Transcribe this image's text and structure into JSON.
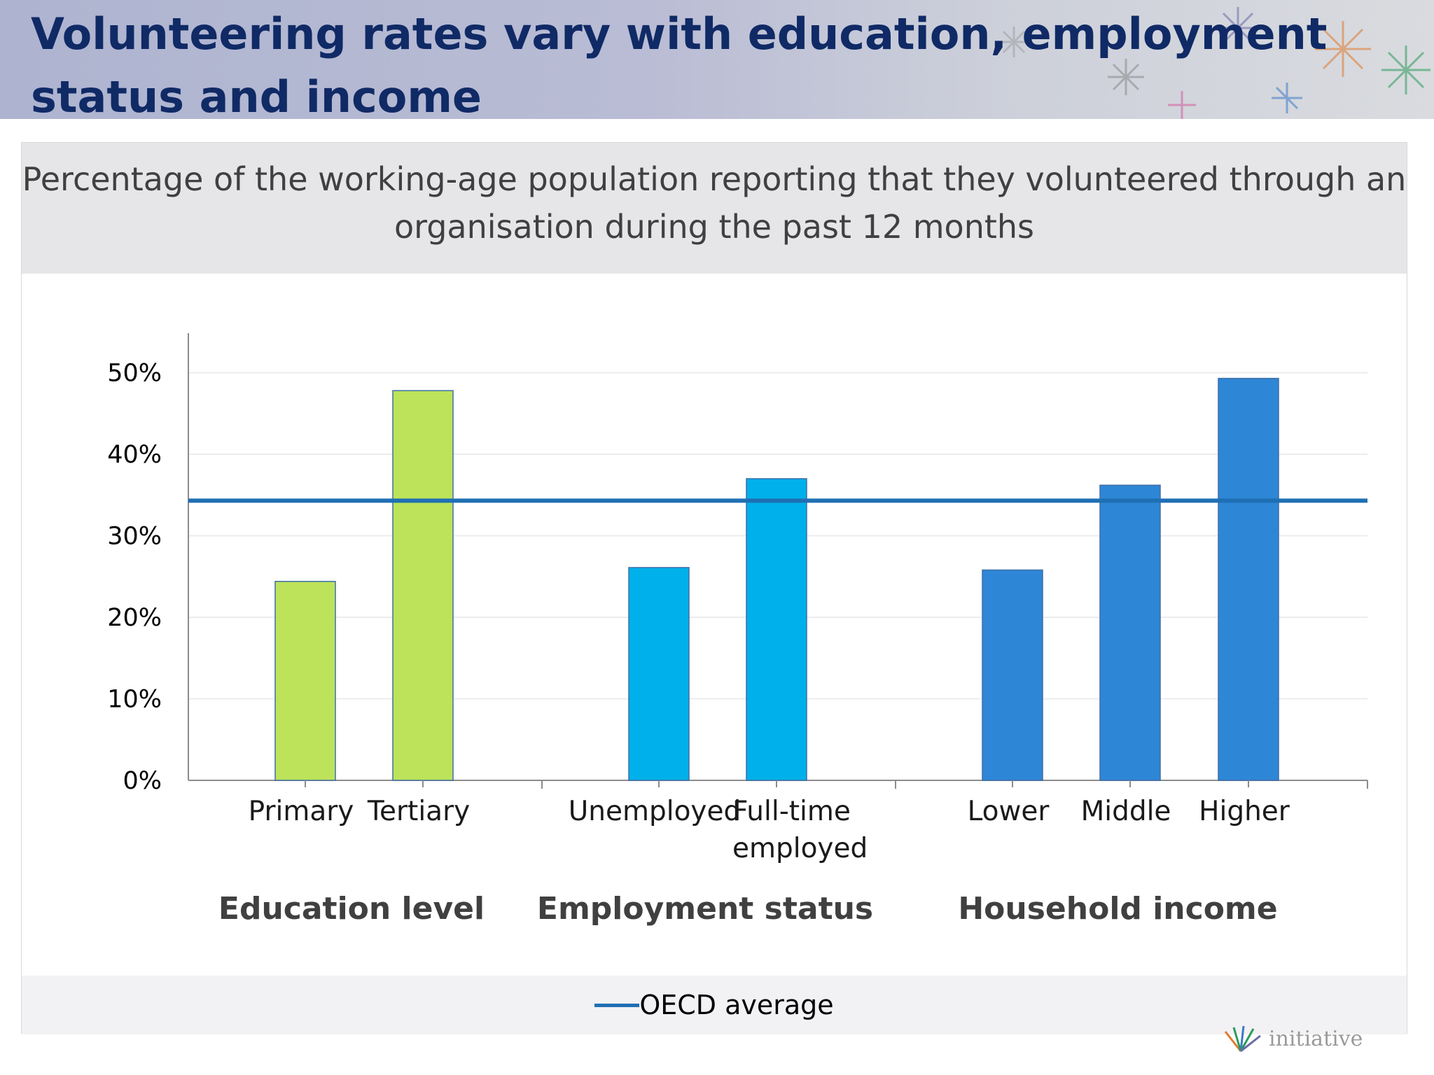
{
  "slide": {
    "title": "Volunteering rates vary with education, employment status and income"
  },
  "footer": {
    "logo_text": "initiative"
  },
  "colors": {
    "title": "#102a66",
    "education": "#bde35a",
    "employment": "#00b0ea",
    "income": "#2e86d6",
    "oecd_line": "#1f6fb4"
  },
  "chart_data": {
    "type": "bar",
    "title": "Percentage of the working-age population reporting that they volunteered through an organisation during the past 12 months",
    "ylim": [
      0,
      55
    ],
    "yticks": [
      0,
      10,
      20,
      30,
      40,
      50
    ],
    "ytick_labels": [
      "0%",
      "10%",
      "20%",
      "30%",
      "40%",
      "50%"
    ],
    "grid": true,
    "groups": [
      {
        "name": "Education level",
        "color": "#bde35a",
        "categories": [
          "Primary",
          "Tertiary"
        ],
        "values": [
          24.4,
          47.8
        ]
      },
      {
        "name": "Employment status",
        "color": "#00b0ea",
        "categories": [
          "Unemployed",
          "Full-time employed"
        ],
        "values": [
          26.1,
          37.0
        ]
      },
      {
        "name": "Household income",
        "color": "#2e86d6",
        "categories": [
          "Lower",
          "Middle",
          "Higher"
        ],
        "values": [
          25.8,
          36.2,
          49.3
        ]
      }
    ],
    "reference_line": {
      "name": "OECD average",
      "value": 34.3,
      "color": "#1f6fb4"
    },
    "legend": {
      "position": "bottom",
      "entries": [
        "OECD average"
      ]
    }
  }
}
